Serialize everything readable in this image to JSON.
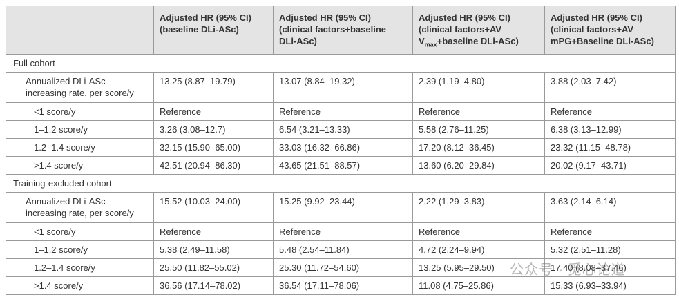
{
  "header": {
    "columns": [
      [
        "Adjusted HR (95% CI)",
        "(baseline DLi-ASc)"
      ],
      [
        "Adjusted HR (95% CI)",
        "(clinical factors+baseline",
        "DLi-ASc)"
      ],
      [
        "Adjusted HR (95% CI)",
        "(clinical factors+AV",
        [
          "V",
          "max",
          "+baseline DLi-ASc)"
        ]
      ],
      [
        "Adjusted HR (95% CI)",
        "(clinical factors+AV",
        "mPG+Baseline DLi-ASc)"
      ]
    ]
  },
  "sections": [
    {
      "title": "Full cohort",
      "rows": [
        {
          "label": [
            "Annualized DLi-ASc",
            "increasing rate, per score/y"
          ],
          "cells": [
            "13.25 (8.87–19.79)",
            "13.07 (8.84–19.32)",
            "2.39 (1.19–4.80)",
            "3.88 (2.03–7.42)"
          ]
        },
        {
          "label": [
            "<1 score/y"
          ],
          "cells": [
            "Reference",
            "Reference",
            "Reference",
            "Reference"
          ]
        },
        {
          "label": [
            "1–1.2 score/y"
          ],
          "cells": [
            "3.26 (3.08–12.7)",
            "6.54 (3.21–13.33)",
            "5.58 (2.76–11.25)",
            "6.38 (3.13–12.99)"
          ]
        },
        {
          "label": [
            "1.2–1.4 score/y"
          ],
          "cells": [
            "32.15 (15.90–65.00)",
            "33.03 (16.32–66.86)",
            "17.20 (8.12–36.45)",
            "23.32 (11.15–48.78)"
          ]
        },
        {
          "label": [
            ">1.4 score/y"
          ],
          "cells": [
            "42.51 (20.94–86.30)",
            "43.65 (21.51–88.57)",
            "13.60 (6.20–29.84)",
            "20.02 (9.17–43.71)"
          ]
        }
      ]
    },
    {
      "title": "Training-excluded cohort",
      "rows": [
        {
          "label": [
            "Annualized DLi-ASc",
            "increasing rate, per score/y"
          ],
          "cells": [
            "15.52 (10.03–24.00)",
            "15.25 (9.92–23.44)",
            "2.22 (1.29–3.83)",
            "3.63 (2.14–6.14)"
          ]
        },
        {
          "label": [
            "<1 score/y"
          ],
          "cells": [
            "Reference",
            "Reference",
            "Reference",
            "Reference"
          ]
        },
        {
          "label": [
            "1–1.2 score/y"
          ],
          "cells": [
            "5.38 (2.49–11.58)",
            "5.48 (2.54–11.84)",
            "4.72 (2.24–9.94)",
            "5.32 (2.51–11.28)"
          ]
        },
        {
          "label": [
            "1.2–1.4 score/y"
          ],
          "cells": [
            "25.50 (11.82–55.02)",
            "25.30 (11.72–54.60)",
            "13.25 (5.95–29.50)",
            "17.40 (8.08–37.46)"
          ]
        },
        {
          "label": [
            ">1.4 score/y"
          ],
          "cells": [
            "36.56 (17.14–78.02)",
            "36.54 (17.11–78.06)",
            "11.08 (4.75–25.86)",
            "15.33 (6.93–33.94)"
          ]
        }
      ]
    }
  ],
  "watermark": "公众号 · 觅心论道"
}
